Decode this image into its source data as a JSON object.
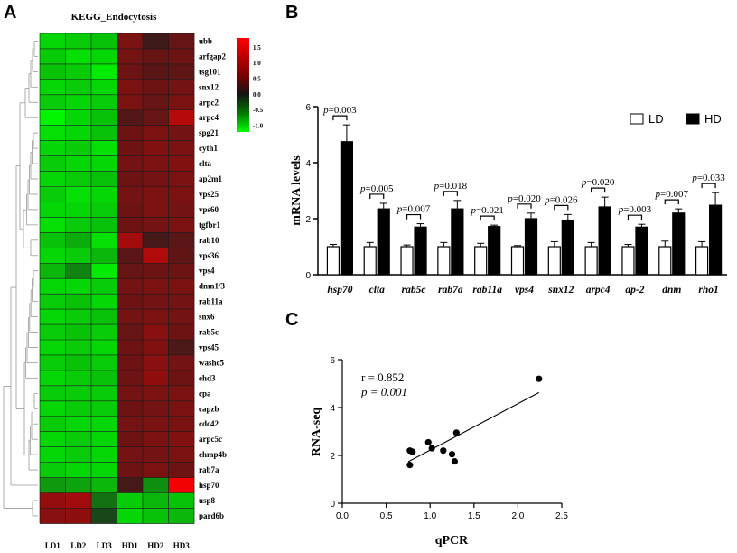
{
  "panels": {
    "a": "A",
    "b": "B",
    "c": "C"
  },
  "chart_data": [
    {
      "type": "heatmap",
      "title": "KEGG_Endocytosis",
      "columns": [
        "LD1",
        "LD2",
        "LD3",
        "HD1",
        "HD2",
        "HD3"
      ],
      "rows": [
        "ubb",
        "arfgap2",
        "tsg101",
        "snx12",
        "arpc2",
        "arpc4",
        "spg21",
        "cyth1",
        "clta",
        "ap2m1",
        "vps25",
        "vps60",
        "tgfbr1",
        "rab10",
        "vps36",
        "vps4",
        "dnm1/3",
        "rab11a",
        "snx6",
        "rab5c",
        "vps45",
        "washc5",
        "ehd3",
        "cpa",
        "capzb",
        "cdc42",
        "arpc5c",
        "chmp4b",
        "rab7a",
        "hsp70",
        "usp8",
        "pard6b"
      ],
      "values": [
        [
          -0.9,
          -0.85,
          -0.8,
          0.7,
          0.25,
          0.55
        ],
        [
          -0.85,
          -0.95,
          -0.9,
          0.65,
          0.55,
          0.6
        ],
        [
          -0.8,
          -0.85,
          -1.0,
          0.6,
          0.45,
          0.5
        ],
        [
          -0.9,
          -0.85,
          -0.9,
          0.7,
          0.6,
          0.65
        ],
        [
          -0.85,
          -0.9,
          -0.85,
          0.7,
          0.55,
          0.7
        ],
        [
          -1.05,
          -0.9,
          -0.8,
          0.4,
          0.55,
          1.15
        ],
        [
          -0.95,
          -0.9,
          -0.8,
          0.6,
          0.7,
          0.65
        ],
        [
          -0.9,
          -0.85,
          -0.95,
          0.6,
          0.75,
          0.7
        ],
        [
          -0.85,
          -0.9,
          -0.9,
          0.65,
          0.7,
          0.75
        ],
        [
          -0.9,
          -0.85,
          -0.8,
          0.6,
          0.65,
          0.7
        ],
        [
          -0.85,
          -0.95,
          -0.9,
          0.65,
          0.7,
          0.7
        ],
        [
          -0.9,
          -0.9,
          -0.85,
          0.6,
          0.7,
          0.65
        ],
        [
          -0.95,
          -0.85,
          -0.8,
          0.6,
          0.65,
          0.7
        ],
        [
          -0.8,
          -0.7,
          -0.95,
          1.0,
          0.3,
          0.45
        ],
        [
          -0.9,
          -0.85,
          -0.75,
          0.45,
          1.1,
          0.5
        ],
        [
          -0.75,
          -0.5,
          -1.0,
          0.55,
          0.6,
          0.6
        ],
        [
          -0.9,
          -0.9,
          -0.85,
          0.65,
          0.7,
          0.7
        ],
        [
          -0.85,
          -0.8,
          -0.9,
          0.6,
          0.65,
          0.65
        ],
        [
          -0.9,
          -0.85,
          -0.8,
          0.65,
          0.7,
          0.65
        ],
        [
          -0.85,
          -0.8,
          -0.85,
          0.55,
          0.8,
          0.6
        ],
        [
          -0.9,
          -0.85,
          -0.9,
          0.6,
          0.75,
          0.35
        ],
        [
          -0.85,
          -0.8,
          -0.85,
          0.6,
          0.8,
          0.65
        ],
        [
          -0.9,
          -0.85,
          -0.8,
          0.6,
          0.85,
          0.6
        ],
        [
          -0.85,
          -0.85,
          -0.85,
          0.65,
          0.7,
          0.7
        ],
        [
          -0.9,
          -0.85,
          -0.85,
          0.6,
          0.65,
          0.7
        ],
        [
          -0.85,
          -0.9,
          -0.9,
          0.65,
          0.7,
          0.7
        ],
        [
          -0.9,
          -0.85,
          -0.9,
          0.6,
          0.7,
          0.75
        ],
        [
          -0.9,
          -0.85,
          -0.9,
          0.65,
          0.65,
          0.7
        ],
        [
          -0.85,
          -0.9,
          -0.9,
          0.6,
          0.7,
          0.6
        ],
        [
          -0.6,
          -0.65,
          -0.75,
          0.3,
          -0.55,
          1.6
        ],
        [
          0.9,
          1.0,
          -0.4,
          -0.85,
          -0.75,
          -0.8
        ],
        [
          0.8,
          0.85,
          -0.2,
          -0.9,
          -0.8,
          -0.75
        ]
      ],
      "colorbar": {
        "ticks": [
          "1.5",
          "1.0",
          "0.5",
          "0.0",
          "-0.5",
          "-1.0"
        ],
        "range": [
          -1.2,
          1.8
        ]
      }
    },
    {
      "type": "bar",
      "ylabel": "mRNA levels",
      "ylim": [
        0,
        6
      ],
      "yticks": [
        "0",
        "2",
        "4",
        "6"
      ],
      "categories": [
        "hsp70",
        "clta",
        "rab5c",
        "rab7a",
        "rab11a",
        "vps4",
        "snx12",
        "arpc4",
        "ap-2",
        "dnm",
        "rho1"
      ],
      "series": [
        {
          "name": "LD",
          "values": [
            1,
            1,
            1,
            1,
            1,
            1,
            1,
            1,
            1,
            1,
            1
          ],
          "errors": [
            0.08,
            0.15,
            0.06,
            0.15,
            0.12,
            0.04,
            0.18,
            0.15,
            0.08,
            0.2,
            0.18
          ]
        },
        {
          "name": "HD",
          "values": [
            4.75,
            2.35,
            1.7,
            2.35,
            1.72,
            2.0,
            1.95,
            2.42,
            1.7,
            2.2,
            2.48
          ],
          "errors": [
            0.6,
            0.2,
            0.12,
            0.3,
            0.05,
            0.2,
            0.2,
            0.35,
            0.1,
            0.15,
            0.45
          ]
        }
      ],
      "pvalues": [
        "p=0.003",
        "p=0.005",
        "p=0.007",
        "p=0.018",
        "p=0.021",
        "p=0.020",
        "p=0.026",
        "p=0.020",
        "p=0.003",
        "p=0.007",
        "p=0.033"
      ]
    },
    {
      "type": "scatter",
      "xlabel": "qPCR",
      "ylabel": "RNA-seq",
      "xlim": [
        0,
        2.5
      ],
      "ylim": [
        0,
        6
      ],
      "xticks": [
        "0.0",
        "0.5",
        "1.0",
        "1.5",
        "2.0",
        "2.5"
      ],
      "yticks": [
        "0",
        "2",
        "4",
        "6"
      ],
      "r_text": "r = 0.852",
      "p_text": "p = 0.001",
      "points": [
        [
          2.24,
          5.2
        ],
        [
          0.77,
          2.2
        ],
        [
          0.8,
          2.15
        ],
        [
          0.77,
          1.6
        ],
        [
          0.98,
          2.55
        ],
        [
          1.02,
          2.3
        ],
        [
          1.15,
          2.2
        ],
        [
          1.3,
          2.95
        ],
        [
          1.25,
          2.05
        ],
        [
          1.28,
          1.75
        ]
      ],
      "fit": {
        "slope": 1.94,
        "intercept": 0.28,
        "x_range": [
          0.75,
          2.24
        ]
      }
    }
  ]
}
